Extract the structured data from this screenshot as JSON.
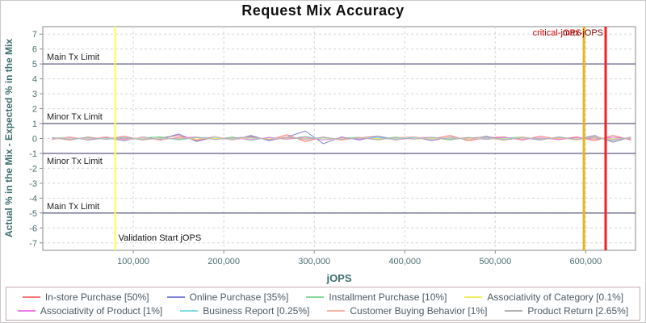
{
  "chart_data": {
    "type": "line",
    "title": "Request Mix Accuracy",
    "xlabel": "jOPS",
    "ylabel": "Actual % in the Mix - Expected % in the Mix",
    "xlim": [
      0,
      655000
    ],
    "ylim": [
      -7.5,
      7.5
    ],
    "grid": true,
    "xtick_values": [
      100000,
      200000,
      300000,
      400000,
      500000,
      600000
    ],
    "xtick_labels": [
      "100,000",
      "200,000",
      "300,000",
      "400,000",
      "500,000",
      "600,000"
    ],
    "ytick_values": [
      -7,
      -6,
      -5,
      -4,
      -3,
      -2,
      -1,
      0,
      1,
      2,
      3,
      4,
      5,
      6,
      7
    ],
    "x": [
      10000,
      30000,
      50000,
      70000,
      90000,
      110000,
      130000,
      150000,
      170000,
      190000,
      210000,
      230000,
      250000,
      270000,
      290000,
      310000,
      330000,
      350000,
      370000,
      390000,
      410000,
      430000,
      450000,
      470000,
      490000,
      510000,
      530000,
      550000,
      570000,
      590000,
      610000,
      630000,
      650000
    ],
    "series": [
      {
        "name": "In-store Purchase [50%]",
        "color": "#f07470",
        "values": [
          0.05,
          -0.1,
          0.1,
          -0.05,
          0.15,
          -0.1,
          0.05,
          0.2,
          -0.15,
          0.1,
          -0.05,
          0.15,
          -0.1,
          0.25,
          -0.2,
          0.1,
          -0.1,
          0.05,
          0.15,
          -0.1,
          0.1,
          -0.05,
          0.2,
          -0.15,
          0.05,
          0.1,
          -0.1,
          0.15,
          -0.05,
          0.1,
          -0.15,
          0.2,
          -0.1
        ]
      },
      {
        "name": "Online Purchase [35%]",
        "color": "#8080d8",
        "values": [
          -0.05,
          0.1,
          -0.1,
          0.05,
          -0.15,
          0.1,
          -0.05,
          0.3,
          -0.2,
          0.1,
          -0.1,
          0.2,
          -0.15,
          0.1,
          0.5,
          -0.35,
          0.1,
          -0.1,
          0.15,
          -0.05,
          0.1,
          -0.15,
          0.1,
          -0.05,
          0.15,
          -0.1,
          0.05,
          -0.1,
          0.1,
          -0.05,
          0.2,
          -0.25,
          0.1
        ]
      },
      {
        "name": "Installment Purchase [10%]",
        "color": "#80d89a",
        "values": [
          0.02,
          0.08,
          -0.06,
          0.1,
          -0.08,
          0.04,
          0.12,
          -0.1,
          0.06,
          -0.04,
          0.1,
          -0.12,
          0.08,
          -0.06,
          0.15,
          -0.1,
          0.04,
          0.08,
          -0.06,
          0.1,
          -0.04,
          0.06,
          -0.1,
          0.08,
          -0.06,
          0.04,
          0.1,
          -0.08,
          0.06,
          -0.04,
          0.12,
          -0.1,
          0.05
        ]
      },
      {
        "name": "Associativity of Category [0.1%]",
        "color": "#f0ec60",
        "values": [
          0.01,
          -0.02,
          0.02,
          -0.01,
          0.03,
          -0.02,
          0.01,
          0.02,
          -0.03,
          0.01,
          -0.01,
          0.02,
          -0.02,
          0.03,
          -0.01,
          0.02,
          -0.02,
          0.01,
          -0.01,
          0.02,
          -0.03,
          0.01,
          0.02,
          -0.01,
          0.01,
          -0.02,
          0.02,
          -0.01,
          0.03,
          -0.02,
          0.01,
          -0.01,
          0.02
        ]
      },
      {
        "name": "Associativity of Product [1%]",
        "color": "#ea7fe2",
        "values": [
          -0.03,
          0.06,
          -0.05,
          0.08,
          -0.04,
          0.06,
          -0.08,
          0.05,
          0.1,
          -0.06,
          0.04,
          -0.08,
          0.06,
          -0.04,
          0.08,
          -0.1,
          0.05,
          -0.04,
          0.06,
          -0.08,
          0.04,
          0.08,
          -0.05,
          0.06,
          -0.04,
          0.08,
          -0.06,
          0.04,
          -0.08,
          0.06,
          -0.05,
          0.08,
          -0.04
        ]
      },
      {
        "name": "Business Report [0.25%]",
        "color": "#7fdede",
        "values": [
          0.04,
          -0.06,
          0.05,
          -0.03,
          0.07,
          -0.05,
          0.04,
          -0.07,
          0.06,
          0.08,
          -0.05,
          0.04,
          -0.06,
          0.07,
          -0.04,
          0.05,
          -0.07,
          0.04,
          0.06,
          -0.05,
          0.07,
          -0.04,
          0.05,
          -0.06,
          0.04,
          -0.05,
          0.07,
          -0.04,
          0.05,
          -0.06,
          0.08,
          -0.05,
          0.04
        ]
      },
      {
        "name": "Customer Buying Behavior [1%]",
        "color": "#f5b8a8",
        "values": [
          -0.08,
          0.1,
          -0.06,
          0.12,
          -0.1,
          0.08,
          -0.12,
          0.1,
          -0.08,
          0.14,
          -0.1,
          0.08,
          -0.06,
          0.12,
          -0.08,
          0.1,
          -0.12,
          0.08,
          -0.1,
          0.06,
          0.12,
          -0.08,
          0.1,
          -0.06,
          0.08,
          -0.12,
          0.1,
          -0.08,
          0.06,
          -0.1,
          0.14,
          -0.08,
          0.06
        ]
      },
      {
        "name": "Product Return [2.65%]",
        "color": "#b3b3b3",
        "values": [
          0.06,
          -0.05,
          0.08,
          -0.06,
          0.04,
          -0.08,
          0.06,
          -0.04,
          0.08,
          -0.06,
          0.05,
          0.1,
          -0.08,
          0.06,
          -0.05,
          0.08,
          -0.06,
          0.05,
          -0.08,
          0.06,
          -0.04,
          0.08,
          -0.06,
          0.04,
          0.1,
          -0.08,
          0.05,
          -0.06,
          0.08,
          -0.05,
          0.06,
          -0.15,
          0.1
        ]
      }
    ],
    "limit_lines": [
      {
        "label": "Main Tx Limit",
        "value": 5,
        "label_side": "above",
        "color": "#333366"
      },
      {
        "label": "Minor Tx Limit",
        "value": 1,
        "label_side": "above",
        "color": "#333366"
      },
      {
        "label": "Minor Tx Limit",
        "value": -1,
        "label_side": "below",
        "color": "#333366"
      },
      {
        "label": "Main Tx Limit",
        "value": -5,
        "label_side": "above",
        "color": "#333366"
      }
    ],
    "vertical_lines": [
      {
        "label": "Validation Start jOPS",
        "value": 80000,
        "color": "#ffff44",
        "width": 2,
        "label_pos": "bottom",
        "label_color": "#111111"
      },
      {
        "label": "critical-jOPS",
        "value": 598000,
        "color": "#e6b419",
        "width": 3,
        "label_pos": "top",
        "label_color": "#cc0000"
      },
      {
        "label": "max-jOPS",
        "value": 622000,
        "color": "#ee2222",
        "width": 3,
        "label_pos": "top",
        "label_color": "#8b0000"
      }
    ],
    "legend_position": "bottom"
  }
}
